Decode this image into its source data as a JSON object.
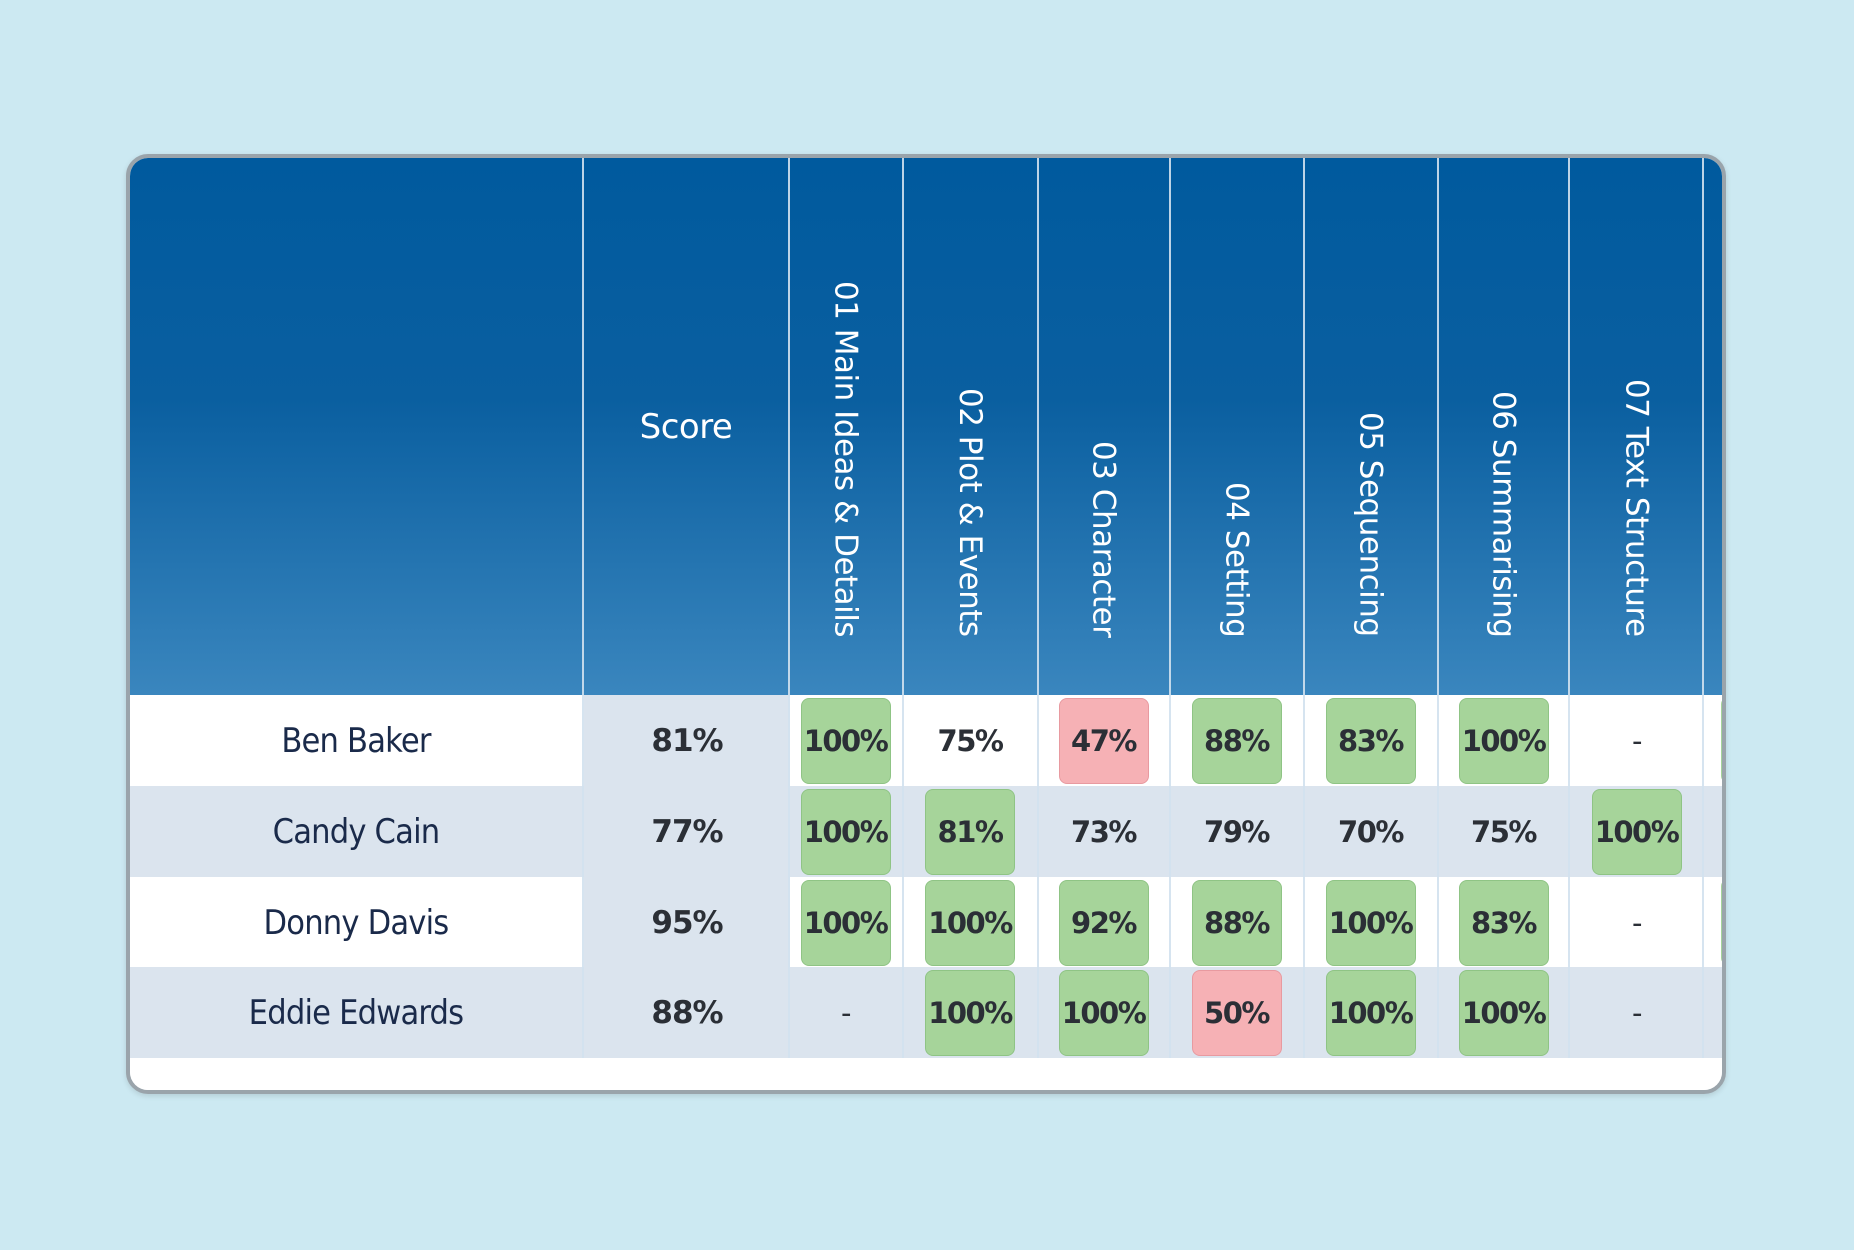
{
  "header": {
    "name_column": "",
    "score_label": "Score",
    "skills": [
      "01 Main Ideas & Details",
      "02 Plot & Events",
      "03 Character",
      "04 Setting",
      "05 Sequencing",
      "06 Summarising",
      "07 Text Structure"
    ]
  },
  "colors": {
    "header_top": "#005a9e",
    "header_bottom": "#3a86be",
    "pass": "#a6d49a",
    "fail": "#f6b1b5",
    "row_alt": "#dbe4ee",
    "background": "#cce9f2"
  },
  "students": [
    {
      "name": "Ben Baker",
      "score": "81%",
      "cells": [
        {
          "value": "100%",
          "status": "green"
        },
        {
          "value": "75%",
          "status": "plain"
        },
        {
          "value": "47%",
          "status": "red"
        },
        {
          "value": "88%",
          "status": "green"
        },
        {
          "value": "83%",
          "status": "green"
        },
        {
          "value": "100%",
          "status": "green"
        },
        {
          "value": "-",
          "status": "dash"
        }
      ],
      "next_cell": "green"
    },
    {
      "name": "Candy Cain",
      "score": "77%",
      "cells": [
        {
          "value": "100%",
          "status": "green"
        },
        {
          "value": "81%",
          "status": "green"
        },
        {
          "value": "73%",
          "status": "plain"
        },
        {
          "value": "79%",
          "status": "plain"
        },
        {
          "value": "70%",
          "status": "plain"
        },
        {
          "value": "75%",
          "status": "plain"
        },
        {
          "value": "100%",
          "status": "green"
        }
      ],
      "next_cell": "none"
    },
    {
      "name": "Donny Davis",
      "score": "95%",
      "cells": [
        {
          "value": "100%",
          "status": "green"
        },
        {
          "value": "100%",
          "status": "green"
        },
        {
          "value": "92%",
          "status": "green"
        },
        {
          "value": "88%",
          "status": "green"
        },
        {
          "value": "100%",
          "status": "green"
        },
        {
          "value": "83%",
          "status": "green"
        },
        {
          "value": "-",
          "status": "dash"
        }
      ],
      "next_cell": "green"
    },
    {
      "name": "Eddie Edwards",
      "score": "88%",
      "cells": [
        {
          "value": "-",
          "status": "dash"
        },
        {
          "value": "100%",
          "status": "green"
        },
        {
          "value": "100%",
          "status": "green"
        },
        {
          "value": "50%",
          "status": "red"
        },
        {
          "value": "100%",
          "status": "green"
        },
        {
          "value": "100%",
          "status": "green"
        },
        {
          "value": "-",
          "status": "dash"
        }
      ],
      "next_cell": "none"
    }
  ]
}
